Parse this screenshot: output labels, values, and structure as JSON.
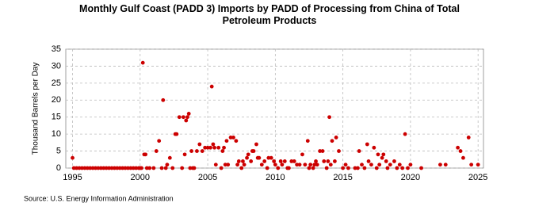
{
  "chart_data": {
    "type": "scatter",
    "title": "Monthly Gulf Coast (PADD 3) Imports by PADD of Processing from China of Total Petroleum Products",
    "y_label": "Thousand Barrels per Day",
    "source": "Source: U.S. Energy Information Administration",
    "xlim": [
      1994.5,
      2025.4
    ],
    "xticks": [
      1995,
      2000,
      2005,
      2010,
      2015,
      2020,
      2025
    ],
    "ylim": [
      0,
      35
    ],
    "yticks": [
      0,
      5,
      10,
      15,
      20,
      25,
      30,
      35
    ],
    "grid": true,
    "series": [
      {
        "color": "#cc0000",
        "x": [
          1995.0,
          1995.1,
          1995.3,
          1995.5,
          1995.7,
          1995.9,
          1996.1,
          1996.3,
          1996.5,
          1996.7,
          1996.9,
          1997.1,
          1997.3,
          1997.5,
          1997.7,
          1997.9,
          1998.1,
          1998.3,
          1998.5,
          1998.7,
          1998.9,
          1999.1,
          1999.3,
          1999.5,
          1999.7,
          1999.9,
          2000.0,
          2000.1,
          2000.2,
          2000.3,
          2000.4,
          2000.5,
          2000.7,
          2001.0,
          2001.2,
          2001.4,
          2001.6,
          2001.7,
          2001.9,
          2002.0,
          2002.2,
          2002.4,
          2002.6,
          2002.7,
          2002.9,
          2003.1,
          2003.2,
          2003.3,
          2003.4,
          2003.5,
          2003.6,
          2003.7,
          2003.8,
          2003.9,
          2004.0,
          2004.2,
          2004.4,
          2004.6,
          2004.8,
          2005.0,
          2005.2,
          2005.3,
          2005.4,
          2005.5,
          2005.6,
          2005.8,
          2006.0,
          2006.1,
          2006.2,
          2006.3,
          2006.4,
          2006.5,
          2006.7,
          2006.9,
          2007.1,
          2007.2,
          2007.3,
          2007.5,
          2007.6,
          2007.7,
          2007.9,
          2008.0,
          2008.2,
          2008.3,
          2008.4,
          2008.6,
          2008.7,
          2008.8,
          2009.0,
          2009.2,
          2009.4,
          2009.5,
          2009.7,
          2009.9,
          2010.0,
          2010.2,
          2010.4,
          2010.5,
          2010.7,
          2010.9,
          2011.0,
          2011.2,
          2011.4,
          2011.6,
          2011.8,
          2012.0,
          2012.2,
          2012.4,
          2012.5,
          2012.6,
          2012.8,
          2012.9,
          2013.0,
          2013.1,
          2013.3,
          2013.5,
          2013.6,
          2013.8,
          2013.9,
          2014.0,
          2014.1,
          2014.2,
          2014.4,
          2014.5,
          2014.7,
          2015.0,
          2015.2,
          2015.4,
          2015.9,
          2016.1,
          2016.2,
          2016.4,
          2016.6,
          2016.8,
          2016.9,
          2017.1,
          2017.3,
          2017.5,
          2017.6,
          2017.7,
          2017.9,
          2018.0,
          2018.2,
          2018.3,
          2018.5,
          2018.8,
          2019.0,
          2019.2,
          2019.4,
          2019.6,
          2019.8,
          2020.0,
          2020.8,
          2022.2,
          2022.6,
          2023.5,
          2023.7,
          2023.9,
          2024.3,
          2024.5,
          2025.0
        ],
        "values": [
          3,
          0,
          0,
          0,
          0,
          0,
          0,
          0,
          0,
          0,
          0,
          0,
          0,
          0,
          0,
          0,
          0,
          0,
          0,
          0,
          0,
          0,
          0,
          0,
          0,
          0,
          0,
          0,
          31,
          4,
          4,
          0,
          0,
          0,
          5,
          8,
          0,
          20,
          0,
          1,
          3,
          0,
          10,
          10,
          15,
          0,
          15,
          4,
          14,
          15,
          16,
          0,
          5,
          0,
          0,
          5,
          7,
          5,
          6,
          6,
          6,
          24,
          7,
          6,
          1,
          6,
          0,
          5,
          6,
          1,
          8,
          1,
          9,
          9,
          8,
          1,
          2,
          0,
          2,
          1,
          3,
          4,
          2,
          5,
          5,
          7,
          3,
          3,
          1,
          2,
          0,
          3,
          3,
          2,
          1,
          0,
          2,
          1,
          2,
          0,
          0,
          2,
          2,
          1,
          1,
          4,
          1,
          8,
          0,
          1,
          0,
          1,
          2,
          1,
          5,
          5,
          2,
          0,
          2,
          15,
          1,
          8,
          2,
          9,
          5,
          0,
          1,
          0,
          0,
          0,
          5,
          1,
          0,
          7,
          2,
          1,
          6,
          0,
          4,
          1,
          3,
          4,
          2,
          0,
          1,
          2,
          0,
          1,
          0,
          10,
          0,
          1,
          0,
          1,
          1,
          6,
          5,
          3,
          9,
          1,
          1
        ]
      }
    ]
  }
}
